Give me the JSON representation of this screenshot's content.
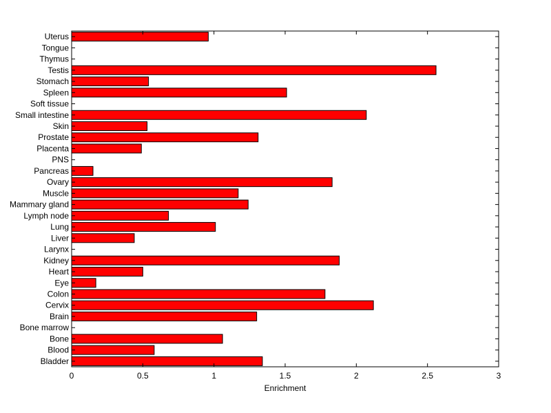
{
  "chart_data": {
    "type": "bar",
    "orientation": "horizontal",
    "title": "",
    "xlabel": "Enrichment",
    "ylabel": "",
    "xlim": [
      0,
      3
    ],
    "xticks": [
      {
        "value": 0,
        "label": "0"
      },
      {
        "value": 0.5,
        "label": "0.5"
      },
      {
        "value": 1,
        "label": "1"
      },
      {
        "value": 1.5,
        "label": "1.5"
      },
      {
        "value": 2,
        "label": "2"
      },
      {
        "value": 2.5,
        "label": "2.5"
      },
      {
        "value": 3,
        "label": "3"
      }
    ],
    "grid": false,
    "bar_color": "#ff0000",
    "edge_color": "#000000",
    "categories": [
      "Bladder",
      "Blood",
      "Bone",
      "Bone marrow",
      "Brain",
      "Cervix",
      "Colon",
      "Eye",
      "Heart",
      "Kidney",
      "Larynx",
      "Liver",
      "Lung",
      "Lymph node",
      "Mammary gland",
      "Muscle",
      "Ovary",
      "Pancreas",
      "PNS",
      "Placenta",
      "Prostate",
      "Skin",
      "Small intestine",
      "Soft tissue",
      "Spleen",
      "Stomach",
      "Testis",
      "Thymus",
      "Tongue",
      "Uterus"
    ],
    "values": [
      1.34,
      0.58,
      1.06,
      0,
      1.3,
      2.12,
      1.78,
      0.17,
      0.5,
      1.88,
      0,
      0.44,
      1.01,
      0.68,
      1.24,
      1.17,
      1.83,
      0.15,
      0,
      0.49,
      1.31,
      0.53,
      2.07,
      0,
      1.51,
      0.54,
      2.56,
      0,
      0,
      0.96
    ]
  }
}
